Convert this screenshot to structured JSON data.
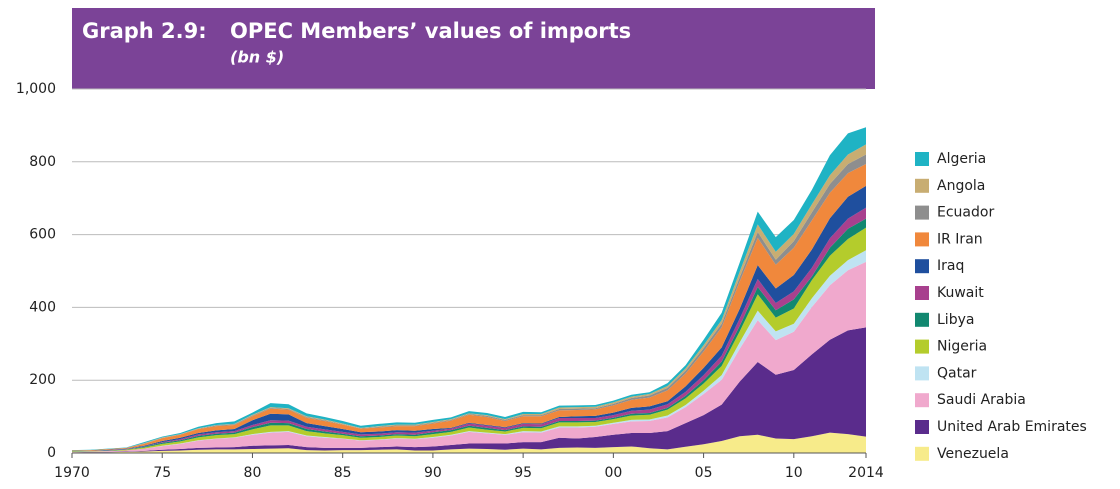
{
  "chart_data": {
    "type": "stacked_area",
    "title_prefix": "Graph 2.9:",
    "title": "OPEC Members’ values of imports",
    "subtitle": "(bn $)",
    "x": [
      1970,
      1971,
      1972,
      1973,
      1974,
      1975,
      1976,
      1977,
      1978,
      1979,
      1980,
      1981,
      1982,
      1983,
      1984,
      1985,
      1986,
      1987,
      1988,
      1989,
      1990,
      1991,
      1992,
      1993,
      1994,
      1995,
      1996,
      1997,
      1998,
      1999,
      2000,
      2001,
      2002,
      2003,
      2004,
      2005,
      2006,
      2007,
      2008,
      2009,
      2010,
      2011,
      2012,
      2013,
      2014
    ],
    "xlim": [
      1970,
      2014
    ],
    "xticks": [
      1970,
      {
        "value": 1975,
        "label": "75"
      },
      {
        "value": 1980,
        "label": "80"
      },
      {
        "value": 1985,
        "label": "85"
      },
      {
        "value": 1990,
        "label": "90"
      },
      {
        "value": 1995,
        "label": "95"
      },
      {
        "value": 2000,
        "label": "00"
      },
      {
        "value": 2005,
        "label": "05"
      },
      {
        "value": 2010,
        "label": "10"
      },
      2014
    ],
    "ylim": [
      0,
      1000
    ],
    "yticks": [
      0,
      200,
      400,
      600,
      800,
      {
        "value": 1000,
        "label": "1,000"
      }
    ],
    "grid": true,
    "legend": "right",
    "series": [
      {
        "name": "Algeria",
        "color": "#1fb3c4",
        "values": [
          1,
          1,
          1,
          1,
          3,
          2,
          3,
          4,
          5,
          7,
          6,
          11,
          11,
          8,
          7,
          7,
          6,
          6,
          6,
          5,
          6,
          5,
          6,
          6,
          6,
          6,
          5,
          5,
          5,
          5,
          5,
          5,
          5,
          8,
          9,
          15,
          20,
          25,
          35,
          40,
          38,
          40,
          55,
          58,
          47
        ]
      },
      {
        "name": "Angola",
        "color": "#c8ad72",
        "values": [
          0,
          0,
          0,
          0,
          1,
          1,
          1,
          1,
          1,
          1,
          2,
          2,
          2,
          2,
          2,
          2,
          1,
          2,
          2,
          2,
          2,
          2,
          2,
          2,
          2,
          3,
          3,
          4,
          4,
          4,
          4,
          4,
          4,
          5,
          6,
          8,
          10,
          15,
          21,
          22,
          20,
          22,
          24,
          26,
          28
        ]
      },
      {
        "name": "Ecuador",
        "color": "#8e8e8e",
        "values": [
          0,
          0,
          0,
          0,
          1,
          1,
          1,
          1,
          2,
          2,
          2,
          2,
          2,
          2,
          2,
          1,
          1,
          2,
          2,
          2,
          2,
          2,
          2,
          3,
          3,
          3,
          3,
          4,
          4,
          3,
          4,
          5,
          6,
          7,
          8,
          9,
          10,
          12,
          16,
          14,
          18,
          22,
          24,
          25,
          26
        ]
      },
      {
        "name": "IR Iran",
        "color": "#f0883c",
        "values": [
          2,
          2,
          2,
          2,
          5,
          8,
          8,
          11,
          12,
          11,
          11,
          14,
          13,
          15,
          14,
          12,
          10,
          11,
          11,
          13,
          15,
          20,
          22,
          22,
          17,
          19,
          20,
          18,
          17,
          18,
          20,
          22,
          24,
          30,
          35,
          45,
          55,
          75,
          75,
          65,
          75,
          80,
          70,
          65,
          60
        ]
      },
      {
        "name": "Iraq",
        "color": "#1f4f9e",
        "values": [
          0,
          0,
          1,
          1,
          2,
          3,
          4,
          4,
          5,
          6,
          13,
          18,
          17,
          10,
          9,
          8,
          6,
          6,
          6,
          5,
          5,
          2,
          2,
          2,
          2,
          2,
          2,
          3,
          5,
          6,
          7,
          8,
          9,
          8,
          15,
          20,
          23,
          27,
          38,
          40,
          45,
          50,
          55,
          60,
          60
        ]
      },
      {
        "name": "Kuwait",
        "color": "#a8408e",
        "values": [
          0,
          0,
          1,
          1,
          1,
          2,
          3,
          4,
          4,
          4,
          6,
          7,
          7,
          6,
          6,
          5,
          5,
          5,
          5,
          6,
          4,
          4,
          6,
          6,
          6,
          7,
          7,
          8,
          8,
          7,
          7,
          8,
          9,
          10,
          11,
          14,
          16,
          20,
          22,
          20,
          22,
          24,
          26,
          28,
          30
        ]
      },
      {
        "name": "Libya",
        "color": "#128870",
        "values": [
          1,
          1,
          1,
          1,
          2,
          3,
          3,
          4,
          4,
          4,
          6,
          7,
          6,
          6,
          5,
          4,
          4,
          4,
          4,
          4,
          5,
          5,
          5,
          5,
          4,
          4,
          4,
          4,
          4,
          4,
          4,
          5,
          5,
          5,
          7,
          9,
          12,
          15,
          20,
          20,
          25,
          10,
          22,
          28,
          25
        ]
      },
      {
        "name": "Nigeria",
        "color": "#b4cc2c",
        "values": [
          1,
          1,
          1,
          2,
          3,
          5,
          6,
          8,
          9,
          9,
          13,
          18,
          16,
          12,
          10,
          9,
          7,
          7,
          7,
          7,
          8,
          8,
          10,
          8,
          7,
          9,
          9,
          11,
          11,
          10,
          10,
          12,
          13,
          16,
          18,
          20,
          25,
          30,
          45,
          38,
          42,
          50,
          55,
          58,
          62
        ]
      },
      {
        "name": "Qatar",
        "color": "#bfe3f2",
        "values": [
          0,
          0,
          0,
          0,
          0,
          1,
          1,
          1,
          1,
          1,
          2,
          2,
          2,
          2,
          2,
          1,
          1,
          1,
          1,
          1,
          2,
          2,
          2,
          2,
          2,
          3,
          3,
          3,
          3,
          3,
          3,
          4,
          4,
          5,
          6,
          9,
          13,
          18,
          26,
          24,
          22,
          24,
          26,
          28,
          32
        ]
      },
      {
        "name": "Saudi Arabia",
        "color": "#f0a9cd",
        "values": [
          1,
          1,
          2,
          3,
          6,
          10,
          14,
          20,
          24,
          26,
          30,
          35,
          36,
          30,
          28,
          25,
          20,
          20,
          22,
          22,
          24,
          26,
          32,
          28,
          24,
          27,
          26,
          28,
          30,
          28,
          30,
          32,
          33,
          38,
          44,
          58,
          68,
          90,
          115,
          95,
          105,
          130,
          150,
          165,
          180
        ]
      },
      {
        "name": "United Arab Emirates",
        "color": "#5a2c8c",
        "values": [
          0,
          1,
          1,
          1,
          2,
          3,
          4,
          5,
          5,
          6,
          9,
          9,
          9,
          8,
          7,
          6,
          6,
          7,
          8,
          9,
          11,
          12,
          14,
          15,
          17,
          18,
          20,
          28,
          25,
          30,
          34,
          37,
          42,
          50,
          65,
          80,
          100,
          150,
          200,
          175,
          190,
          225,
          255,
          285,
          300
        ]
      },
      {
        "name": "Venezuela",
        "color": "#f7eb8a",
        "values": [
          2,
          2,
          2,
          3,
          4,
          6,
          7,
          9,
          10,
          10,
          11,
          12,
          13,
          8,
          7,
          8,
          8,
          9,
          10,
          7,
          7,
          10,
          12,
          11,
          9,
          12,
          10,
          14,
          15,
          14,
          16,
          18,
          13,
          10,
          17,
          24,
          33,
          46,
          50,
          40,
          38,
          46,
          56,
          52,
          45
        ]
      }
    ]
  }
}
